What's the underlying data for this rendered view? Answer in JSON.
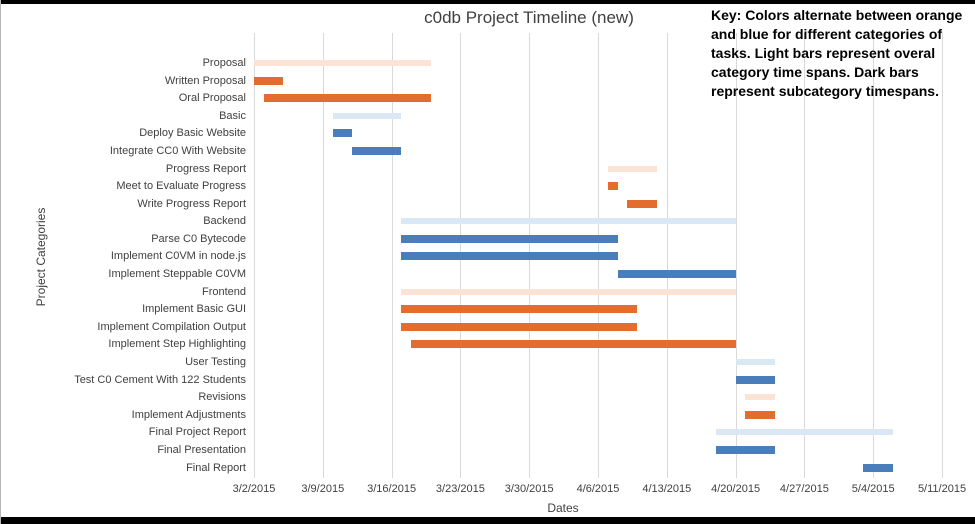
{
  "chart_data": {
    "type": "bar",
    "subtype": "gantt-horizontal",
    "title": "c0db Project Timeline (new)",
    "key_note": "Key: Colors alternate between orange and blue for different categories of tasks. Light bars represent overal category time spans. Dark bars represent subcategory timespans.",
    "xlabel": "Dates",
    "ylabel": "Project Categories",
    "x_ticks": [
      "3/2/2015",
      "3/9/2015",
      "3/16/2015",
      "3/23/2015",
      "3/30/2015",
      "4/6/2015",
      "4/13/2015",
      "4/20/2015",
      "4/27/2015",
      "5/4/2015",
      "5/11/2015"
    ],
    "x_range": [
      "3/2/2015",
      "5/11/2015"
    ],
    "grid": true,
    "legend_position": "none",
    "colors": {
      "light_orange": "#FBE4D5",
      "dark_orange": "#E36C2F",
      "light_blue": "#DAE7F4",
      "dark_blue": "#4A7EBB"
    },
    "tasks": [
      {
        "label": "Proposal",
        "start": "3/2/2015",
        "end": "3/20/2015",
        "color": "light_orange"
      },
      {
        "label": "Written Proposal",
        "start": "3/2/2015",
        "end": "3/5/2015",
        "color": "dark_orange"
      },
      {
        "label": "Oral Proposal",
        "start": "3/3/2015",
        "end": "3/20/2015",
        "color": "dark_orange"
      },
      {
        "label": "Basic",
        "start": "3/10/2015",
        "end": "3/17/2015",
        "color": "light_blue"
      },
      {
        "label": "Deploy Basic Website",
        "start": "3/10/2015",
        "end": "3/12/2015",
        "color": "dark_blue"
      },
      {
        "label": "Integrate CC0 With Website",
        "start": "3/12/2015",
        "end": "3/17/2015",
        "color": "dark_blue"
      },
      {
        "label": "Progress Report",
        "start": "4/7/2015",
        "end": "4/12/2015",
        "color": "light_orange"
      },
      {
        "label": "Meet to Evaluate Progress",
        "start": "4/7/2015",
        "end": "4/8/2015",
        "color": "dark_orange"
      },
      {
        "label": "Write Progress Report",
        "start": "4/9/2015",
        "end": "4/12/2015",
        "color": "dark_orange"
      },
      {
        "label": "Backend",
        "start": "3/17/2015",
        "end": "4/20/2015",
        "color": "light_blue"
      },
      {
        "label": "Parse C0 Bytecode",
        "start": "3/17/2015",
        "end": "4/8/2015",
        "color": "dark_blue"
      },
      {
        "label": "Implement C0VM in node.js",
        "start": "3/17/2015",
        "end": "4/8/2015",
        "color": "dark_blue"
      },
      {
        "label": "Implement Steppable C0VM",
        "start": "4/8/2015",
        "end": "4/20/2015",
        "color": "dark_blue"
      },
      {
        "label": "Frontend",
        "start": "3/17/2015",
        "end": "4/20/2015",
        "color": "light_orange"
      },
      {
        "label": "Implement Basic GUI",
        "start": "3/17/2015",
        "end": "4/10/2015",
        "color": "dark_orange"
      },
      {
        "label": "Implement Compilation Output",
        "start": "3/17/2015",
        "end": "4/10/2015",
        "color": "dark_orange"
      },
      {
        "label": "Implement Step Highlighting",
        "start": "3/18/2015",
        "end": "4/20/2015",
        "color": "dark_orange"
      },
      {
        "label": "User Testing",
        "start": "4/20/2015",
        "end": "4/24/2015",
        "color": "light_blue"
      },
      {
        "label": "Test C0 Cement With 122 Students",
        "start": "4/20/2015",
        "end": "4/24/2015",
        "color": "dark_blue"
      },
      {
        "label": "Revisions",
        "start": "4/21/2015",
        "end": "4/24/2015",
        "color": "light_orange"
      },
      {
        "label": "Implement Adjustments",
        "start": "4/21/2015",
        "end": "4/24/2015",
        "color": "dark_orange"
      },
      {
        "label": "Final Project Report",
        "start": "4/18/2015",
        "end": "5/6/2015",
        "color": "light_blue"
      },
      {
        "label": "Final Presentation",
        "start": "4/18/2015",
        "end": "4/24/2015",
        "color": "dark_blue"
      },
      {
        "label": "Final Report",
        "start": "5/3/2015",
        "end": "5/6/2015",
        "color": "dark_blue"
      }
    ]
  }
}
